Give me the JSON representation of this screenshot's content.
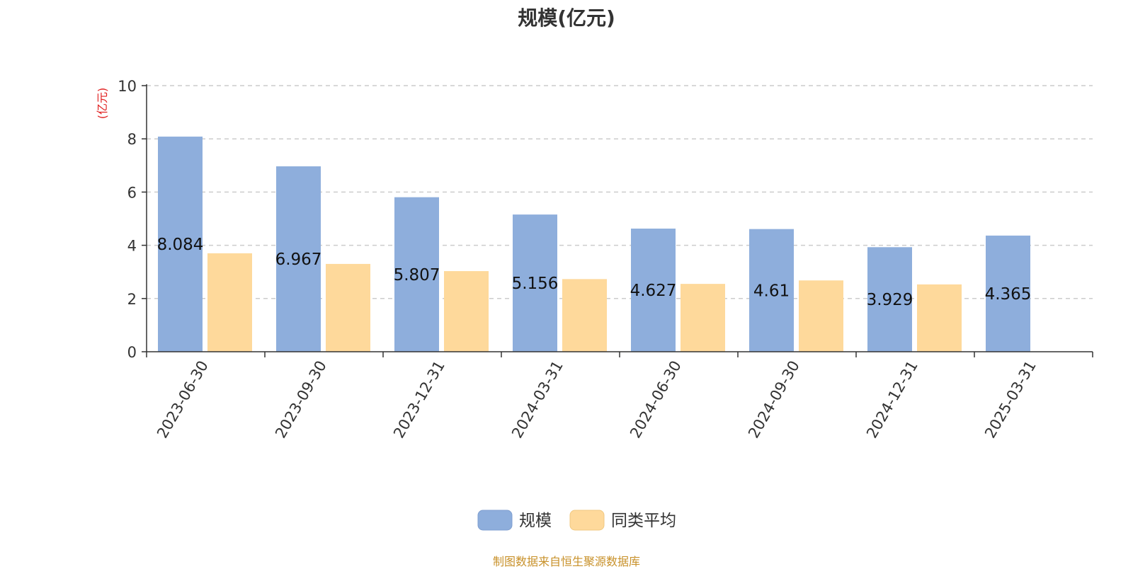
{
  "chart_data": {
    "type": "bar",
    "title": "规模(亿元)",
    "ylabel": "(亿元)",
    "xlabel": "",
    "ylim": [
      0,
      10
    ],
    "yticks": [
      0,
      2,
      4,
      6,
      8,
      10
    ],
    "grid": "y-dashed",
    "categories": [
      "2023-06-30",
      "2023-09-30",
      "2023-12-31",
      "2024-03-31",
      "2024-06-30",
      "2024-09-30",
      "2024-12-31",
      "2025-03-31"
    ],
    "series": [
      {
        "name": "规模",
        "color": "#8eaedc",
        "values": [
          8.084,
          6.967,
          5.807,
          5.156,
          4.627,
          4.61,
          3.929,
          4.365
        ],
        "labels": [
          "8.084",
          "6.967",
          "5.807",
          "5.156",
          "4.627",
          "4.61",
          "3.929",
          "4.365"
        ]
      },
      {
        "name": "同类平均",
        "color": "#fed99b",
        "values": [
          3.7,
          3.3,
          3.03,
          2.73,
          2.55,
          2.68,
          2.53,
          null
        ]
      }
    ],
    "legend": "bottom-center"
  },
  "source_note": "制图数据来自恒生聚源数据库"
}
